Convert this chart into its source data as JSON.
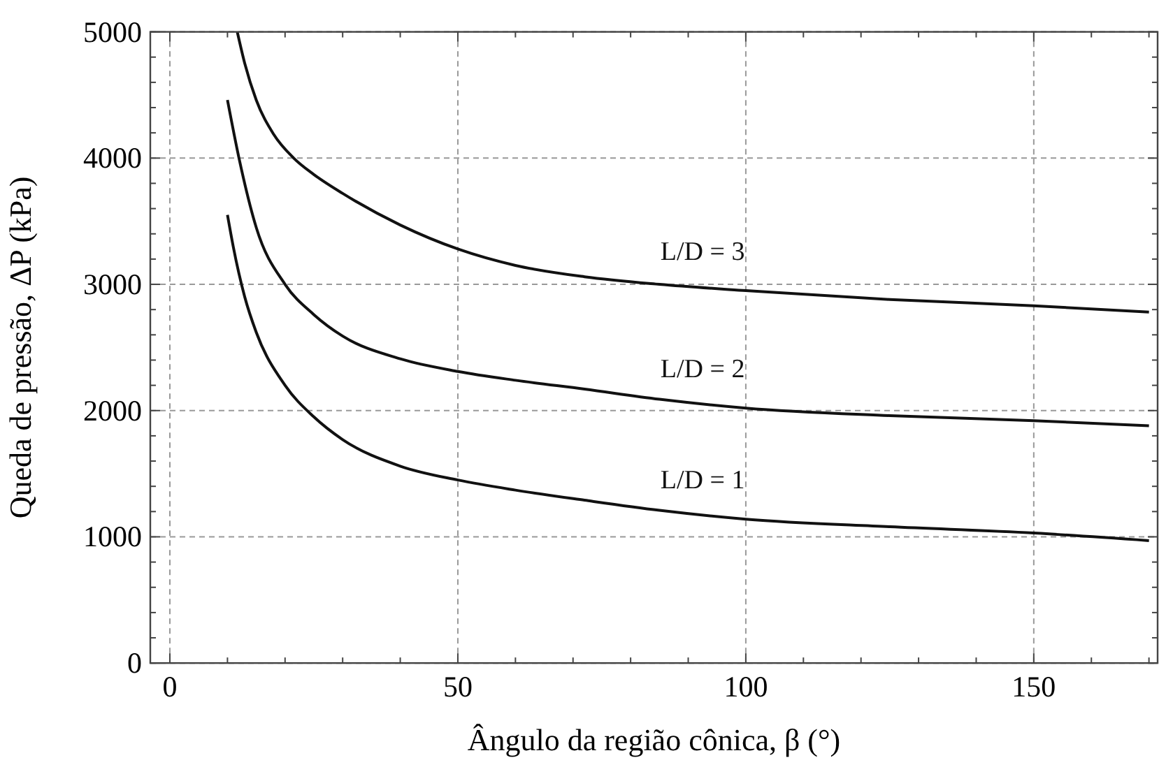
{
  "chart_data": {
    "type": "line",
    "xlabel": "Ângulo da região cônica, β (°)",
    "ylabel": "Queda de pressão, ΔP (kPa)",
    "xlim": [
      -3.4,
      171.5
    ],
    "ylim": [
      0,
      5000
    ],
    "xticks": [
      0,
      {
        "value": 10,
        "label": null
      },
      {
        "value": 20,
        "label": null
      },
      {
        "value": 30,
        "label": null
      },
      {
        "value": 40,
        "label": null
      },
      50,
      {
        "value": 60,
        "label": null
      },
      {
        "value": 70,
        "label": null
      },
      {
        "value": 80,
        "label": null
      },
      {
        "value": 90,
        "label": null
      },
      100,
      {
        "value": 110,
        "label": null
      },
      {
        "value": 120,
        "label": null
      },
      {
        "value": 130,
        "label": null
      },
      {
        "value": 140,
        "label": null
      },
      150,
      {
        "value": 160,
        "label": null
      },
      {
        "value": 170,
        "label": null
      }
    ],
    "yticks": [
      0,
      {
        "value": 200,
        "label": null
      },
      {
        "value": 400,
        "label": null
      },
      {
        "value": 600,
        "label": null
      },
      {
        "value": 800,
        "label": null
      },
      1000,
      {
        "value": 1200,
        "label": null
      },
      {
        "value": 1400,
        "label": null
      },
      {
        "value": 1600,
        "label": null
      },
      {
        "value": 1800,
        "label": null
      },
      2000,
      {
        "value": 2200,
        "label": null
      },
      {
        "value": 2400,
        "label": null
      },
      {
        "value": 2600,
        "label": null
      },
      {
        "value": 2800,
        "label": null
      },
      3000,
      {
        "value": 3200,
        "label": null
      },
      {
        "value": 3400,
        "label": null
      },
      {
        "value": 3600,
        "label": null
      },
      {
        "value": 3800,
        "label": null
      },
      4000,
      {
        "value": 4200,
        "label": null
      },
      {
        "value": 4400,
        "label": null
      },
      {
        "value": 4600,
        "label": null
      },
      {
        "value": 4800,
        "label": null
      },
      5000
    ],
    "grid": true,
    "line_style": "solid",
    "series": [
      {
        "name": "L/D = 1",
        "color": "#111111",
        "x": [
          10,
          11,
          13,
          15,
          20,
          25,
          30,
          40,
          50,
          60,
          72,
          85,
          100,
          125,
          150,
          170
        ],
        "values": [
          3550,
          3300,
          2900,
          2620,
          2200,
          1950,
          1770,
          1560,
          1450,
          1370,
          1290,
          1210,
          1140,
          1080,
          1030,
          970
        ]
      },
      {
        "name": "L/D = 2",
        "color": "#111111",
        "x": [
          10,
          12,
          15,
          20,
          25,
          30,
          40,
          50,
          60,
          72,
          85,
          100,
          125,
          150,
          170
        ],
        "values": [
          4460,
          4000,
          3450,
          3000,
          2760,
          2590,
          2410,
          2310,
          2240,
          2170,
          2090,
          2020,
          1960,
          1920,
          1880
        ]
      },
      {
        "name": "L/D = 3",
        "color": "#111111",
        "x": [
          11.7,
          13,
          15,
          18,
          21.5,
          25,
          30,
          40,
          50,
          60,
          72,
          85,
          100,
          125,
          150,
          170
        ],
        "values": [
          5000,
          4750,
          4460,
          4190,
          4000,
          3870,
          3720,
          3470,
          3280,
          3150,
          3060,
          3000,
          2950,
          2880,
          2830,
          2780
        ]
      }
    ]
  }
}
